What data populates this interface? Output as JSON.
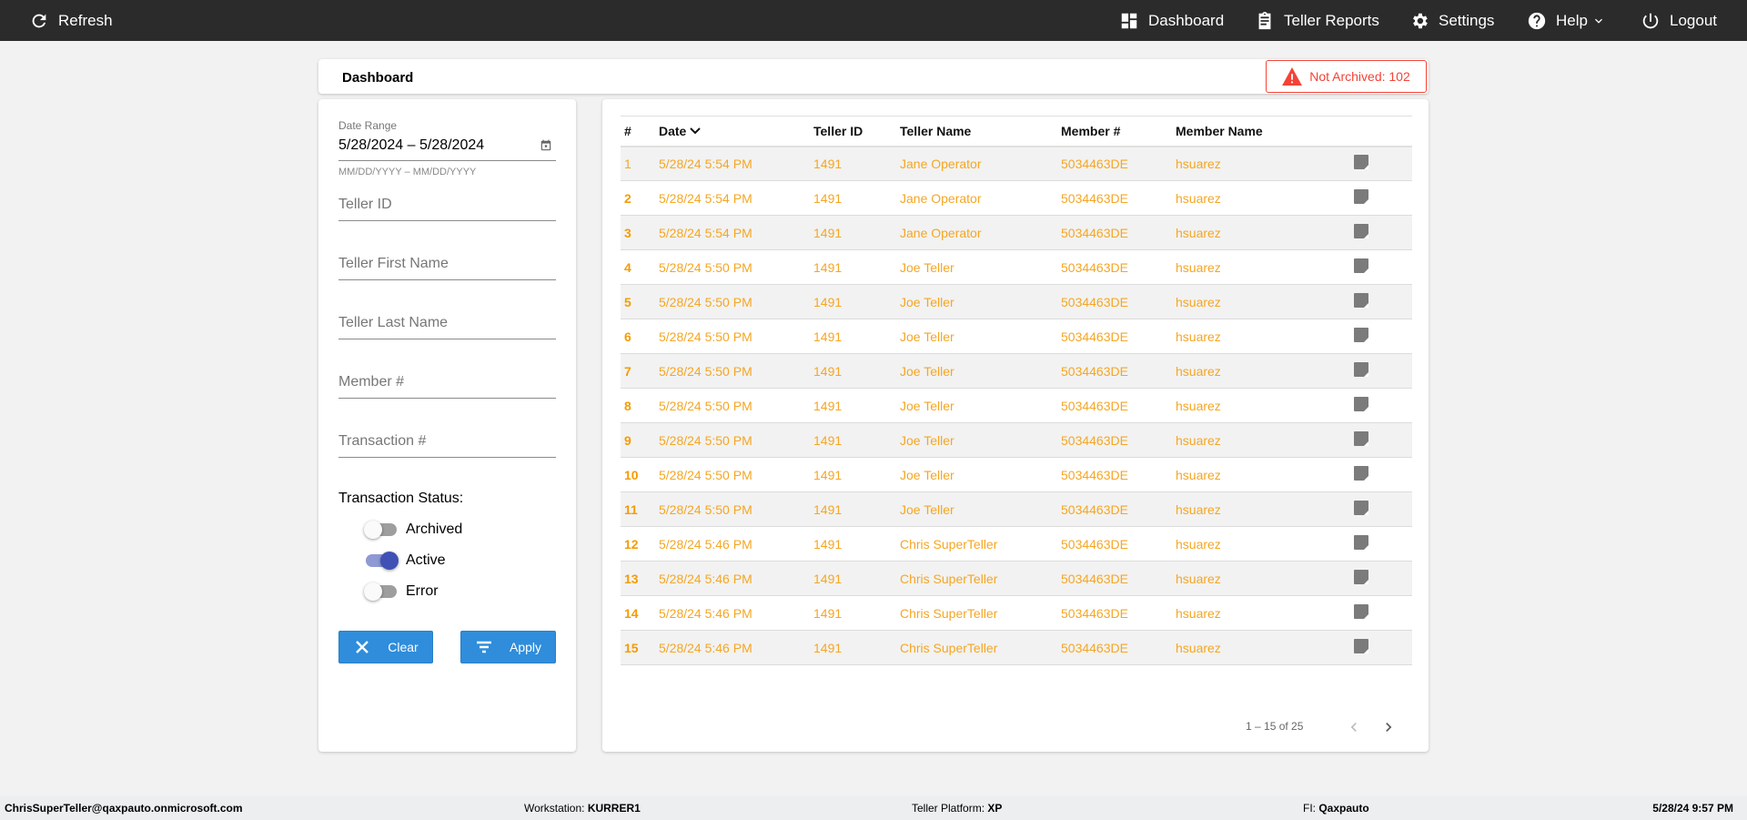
{
  "topbar": {
    "refresh": "Refresh",
    "nav": [
      {
        "label": "Dashboard",
        "icon": "dashboard-icon"
      },
      {
        "label": "Teller Reports",
        "icon": "clipboard-icon"
      },
      {
        "label": "Settings",
        "icon": "gear-icon"
      },
      {
        "label": "Help",
        "icon": "help-icon"
      },
      {
        "label": "Logout",
        "icon": "power-icon"
      }
    ]
  },
  "header": {
    "title": "Dashboard",
    "alert": "Not Archived: 102",
    "alert_color": "#f44336"
  },
  "filters": {
    "date_label": "Date Range",
    "date_value": "5/28/2024 – 5/28/2024",
    "date_hint": "MM/DD/YYYY – MM/DD/YYYY",
    "teller_id": "Teller ID",
    "first_name": "Teller First Name",
    "last_name": "Teller Last Name",
    "member": "Member #",
    "transaction": "Transaction #",
    "status_label": "Transaction Status:",
    "toggles": [
      {
        "label": "Archived",
        "on": false
      },
      {
        "label": "Active",
        "on": true
      },
      {
        "label": "Error",
        "on": false
      }
    ],
    "clear": "Clear",
    "apply": "Apply"
  },
  "table": {
    "columns": [
      "#",
      "Date",
      "Teller ID",
      "Teller Name",
      "Member #",
      "Member Name"
    ],
    "rows": [
      [
        "1",
        "5/28/24 5:54 PM",
        "1491",
        "Jane Operator",
        "5034463DE",
        "hsuarez"
      ],
      [
        "2",
        "5/28/24 5:54 PM",
        "1491",
        "Jane Operator",
        "5034463DE",
        "hsuarez"
      ],
      [
        "3",
        "5/28/24 5:54 PM",
        "1491",
        "Jane Operator",
        "5034463DE",
        "hsuarez"
      ],
      [
        "4",
        "5/28/24 5:50 PM",
        "1491",
        "Joe Teller",
        "5034463DE",
        "hsuarez"
      ],
      [
        "5",
        "5/28/24 5:50 PM",
        "1491",
        "Joe Teller",
        "5034463DE",
        "hsuarez"
      ],
      [
        "6",
        "5/28/24 5:50 PM",
        "1491",
        "Joe Teller",
        "5034463DE",
        "hsuarez"
      ],
      [
        "7",
        "5/28/24 5:50 PM",
        "1491",
        "Joe Teller",
        "5034463DE",
        "hsuarez"
      ],
      [
        "8",
        "5/28/24 5:50 PM",
        "1491",
        "Joe Teller",
        "5034463DE",
        "hsuarez"
      ],
      [
        "9",
        "5/28/24 5:50 PM",
        "1491",
        "Joe Teller",
        "5034463DE",
        "hsuarez"
      ],
      [
        "10",
        "5/28/24 5:50 PM",
        "1491",
        "Joe Teller",
        "5034463DE",
        "hsuarez"
      ],
      [
        "11",
        "5/28/24 5:50 PM",
        "1491",
        "Joe Teller",
        "5034463DE",
        "hsuarez"
      ],
      [
        "12",
        "5/28/24 5:46 PM",
        "1491",
        "Chris SuperTeller",
        "5034463DE",
        "hsuarez"
      ],
      [
        "13",
        "5/28/24 5:46 PM",
        "1491",
        "Chris SuperTeller",
        "5034463DE",
        "hsuarez"
      ],
      [
        "14",
        "5/28/24 5:46 PM",
        "1491",
        "Chris SuperTeller",
        "5034463DE",
        "hsuarez"
      ],
      [
        "15",
        "5/28/24 5:46 PM",
        "1491",
        "Chris SuperTeller",
        "5034463DE",
        "hsuarez"
      ]
    ],
    "pagination": "1 – 15 of 25"
  },
  "footer": {
    "user": "ChrisSuperTeller@qaxpauto.onmicrosoft.com",
    "workstation_label": "Workstation:",
    "workstation": "KURRER1",
    "platform_label": "Teller Platform:",
    "platform": "XP",
    "fi_label": "FI:",
    "fi": "Qaxpauto",
    "datetime": "5/28/24 9:57 PM"
  }
}
